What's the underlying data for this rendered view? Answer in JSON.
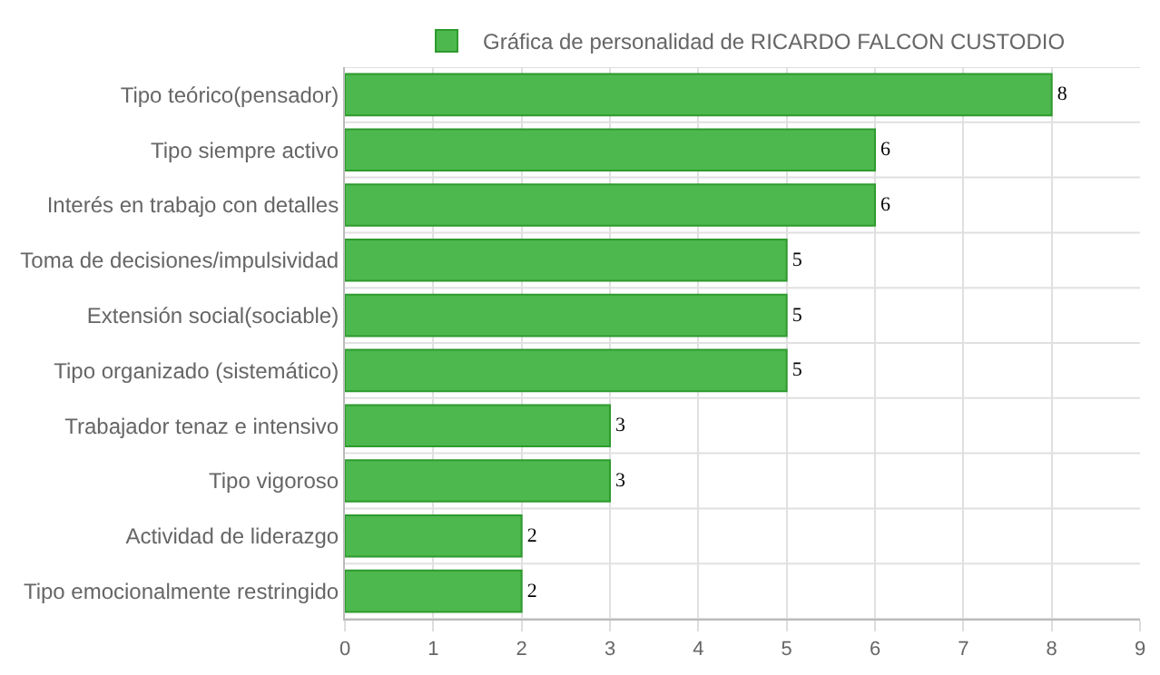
{
  "chart_data": {
    "type": "bar",
    "orientation": "horizontal",
    "categories": [
      "Tipo teórico(pensador)",
      "Tipo siempre activo",
      "Interés en trabajo con detalles",
      "Toma de decisiones/impulsividad",
      "Extensión social(sociable)",
      "Tipo organizado (sistemático)",
      "Trabajador tenaz e intensivo",
      "Tipo vigoroso",
      "Actividad de liderazgo",
      "Tipo emocionalmente restringido"
    ],
    "series": [
      {
        "name": "Gráfica de personalidad de RICARDO FALCON CUSTODIO",
        "color": "#4db84d",
        "values": [
          8,
          6,
          6,
          5,
          5,
          5,
          3,
          3,
          2,
          2
        ]
      }
    ],
    "xlim": [
      0,
      9
    ],
    "xticks": [
      0,
      1,
      2,
      3,
      4,
      5,
      6,
      7,
      8,
      9
    ],
    "grid": true,
    "legend": "top",
    "data_labels": true
  }
}
